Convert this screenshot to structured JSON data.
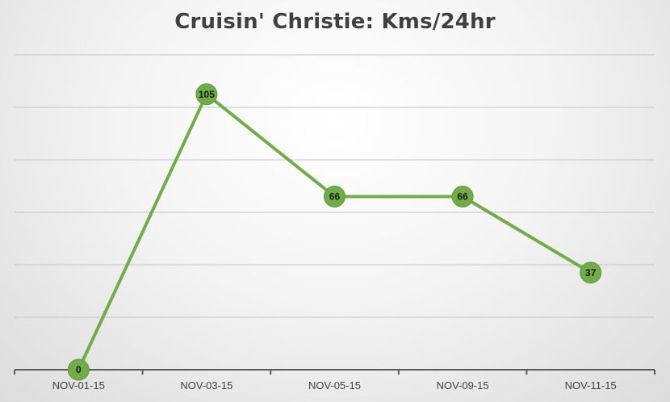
{
  "chart_data": {
    "type": "line",
    "title": "Cruisin' Christie: Kms/24hr",
    "xlabel": "",
    "ylabel": "",
    "categories": [
      "NOV-01-15",
      "NOV-03-15",
      "NOV-05-15",
      "NOV-09-15",
      "NOV-11-15"
    ],
    "series": [
      {
        "values": [
          0,
          105,
          66,
          66,
          37
        ]
      }
    ],
    "ylim": [
      0,
      120
    ],
    "grid": true,
    "legend": "none",
    "data_labels": true,
    "colors": {
      "series": "#70ad47",
      "marker": "#70ad47",
      "marker_edge": "#5e9a3a"
    }
  }
}
